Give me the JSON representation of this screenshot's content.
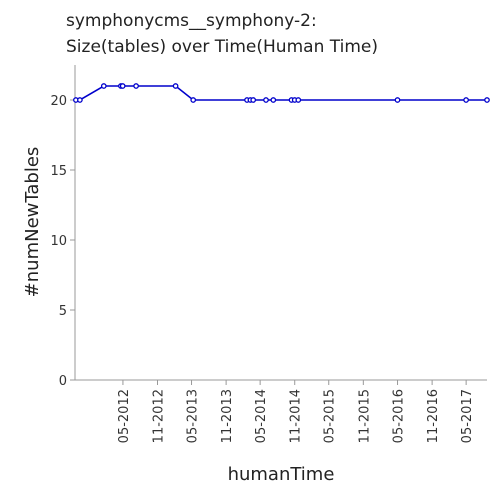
{
  "chart_data": {
    "type": "line",
    "title_lines": [
      "symphonycms__symphony-2:",
      "Size(tables) over Time(Human Time)"
    ],
    "xlabel": "humanTime",
    "ylabel": "#numNewTables",
    "ylim": [
      0,
      22.5
    ],
    "yticks": [
      0,
      5,
      10,
      15,
      20
    ],
    "xlim": [
      "2011-08-20",
      "2017-08-20"
    ],
    "xticks": [
      "2012-05-01",
      "2012-11-01",
      "2013-05-01",
      "2013-11-01",
      "2014-05-01",
      "2014-11-01",
      "2015-05-01",
      "2015-11-01",
      "2016-05-01",
      "2016-11-01",
      "2017-05-01"
    ],
    "xtick_labels": [
      "05-2012",
      "11-2012",
      "05-2013",
      "11-2013",
      "05-2014",
      "11-2014",
      "05-2015",
      "11-2015",
      "05-2016",
      "11-2016",
      "05-2017"
    ],
    "grid": false,
    "series_color": "#0000cc",
    "series": [
      {
        "x": [
          "2011-08-25",
          "2011-09-15",
          "2012-01-20",
          "2012-04-20",
          "2012-04-30",
          "2012-07-10",
          "2013-02-05",
          "2013-05-10",
          "2014-02-20",
          "2014-03-10",
          "2014-03-25",
          "2014-06-01",
          "2014-07-10",
          "2014-10-15",
          "2014-11-01",
          "2014-11-20",
          "2016-05-01",
          "2017-05-01",
          "2017-08-20"
        ],
        "values": [
          20,
          20,
          21,
          21,
          21,
          21,
          21,
          20,
          20,
          20,
          20,
          20,
          20,
          20,
          20,
          20,
          20,
          20,
          20
        ]
      }
    ]
  }
}
